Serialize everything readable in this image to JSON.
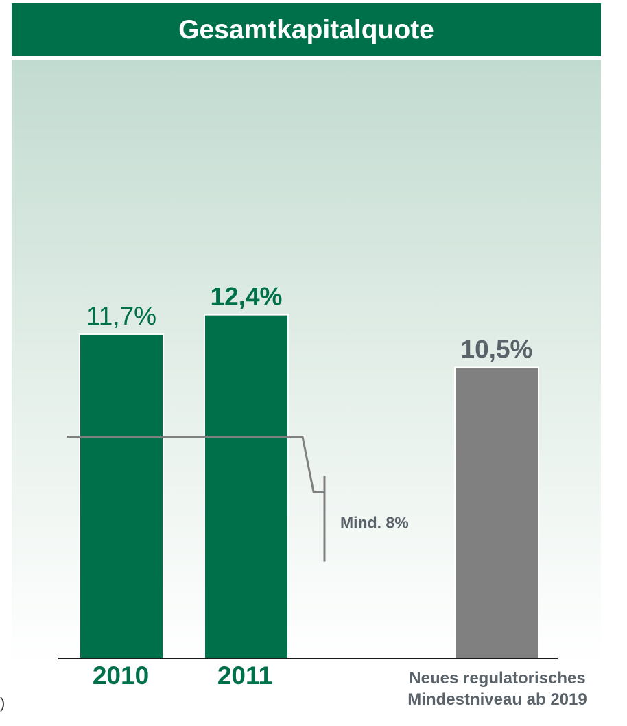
{
  "chart_data": {
    "type": "bar",
    "title": "Gesamtkapitalquote",
    "categories": [
      "2010",
      "2011",
      "Neues regulatorisches Mindestniveau ab 2019"
    ],
    "values": [
      11.7,
      12.4,
      10.5
    ],
    "value_labels": [
      "11,7%",
      "12,4%",
      "10,5%"
    ],
    "ylim": [
      0,
      16.2
    ],
    "colors": [
      "#00704a",
      "#00704a",
      "#808080"
    ],
    "label_colors": [
      "#00704a",
      "#00704a",
      "#5a626a"
    ],
    "reference_line": {
      "value": 8,
      "label": "Mind. 8%",
      "color": "#808080"
    },
    "grid": false
  },
  "category_labels": {
    "c2010": "2010",
    "c2011": "2011",
    "c2019_line1": "Neues regulatorisches",
    "c2019_line2": "Mindestniveau ab 2019"
  },
  "edge_fragment": ")"
}
